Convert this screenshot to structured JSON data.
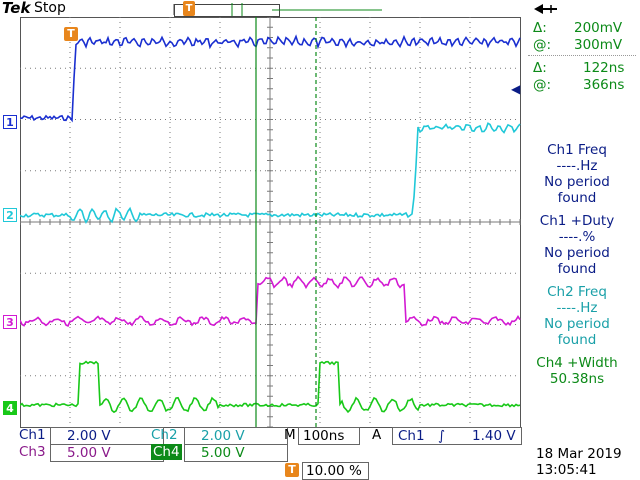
{
  "header": {
    "brand": "Tek",
    "status": "Stop",
    "trigger_marker_glyph": "T"
  },
  "cursor_readout": {
    "v_delta": "Δ:",
    "v_delta_value": "200mV",
    "v_at": "@:",
    "v_at_value": "300mV",
    "t_delta": "Δ:",
    "t_delta_value": "122ns",
    "t_at": "@:",
    "t_at_value": "366ns"
  },
  "measurements": [
    {
      "line1": "Ch1 Freq",
      "line2": "----.Hz",
      "line3": "No period",
      "line4": "found",
      "color": "#0a1c86"
    },
    {
      "line1": "Ch1 +Duty",
      "line2": "----.%",
      "line3": "No period",
      "line4": "found",
      "color": "#0a1c86"
    },
    {
      "line1": "Ch2 Freq",
      "line2": "----.Hz",
      "line3": "No period",
      "line4": "found",
      "color": "#1aa0a8"
    },
    {
      "line1": "Ch4 +Width",
      "line2": "50.38ns",
      "color": "#0c8a18"
    }
  ],
  "channel_markers": [
    {
      "label": "1",
      "color": "#1a2fd0"
    },
    {
      "label": "2",
      "color": "#20c8d8"
    },
    {
      "label": "3",
      "color": "#d21ad2"
    },
    {
      "label": "4",
      "color": "#18c818"
    }
  ],
  "bottom_bar": {
    "ch1_label": "Ch1",
    "ch1_scale": "2.00 V",
    "ch2_label": "Ch2",
    "ch2_scale": "2.00 V",
    "ch3_label": "Ch3",
    "ch3_scale": "5.00 V",
    "ch4_label": "Ch4",
    "ch4_scale": "5.00 V",
    "horiz_prefix": "M",
    "horiz_scale": "100ns",
    "trig_mode": "A",
    "trig_source": "Ch1",
    "trig_slope": "∫",
    "trig_level": "1.40 V",
    "trig_position": "10.00 %",
    "date": "18 Mar 2019",
    "time": "13:05:41"
  },
  "colors": {
    "ch1": "#1a2fd0",
    "ch2": "#20c8d8",
    "ch3": "#d21ad2",
    "ch4": "#18c818",
    "trigger": "#e8861c",
    "grid": "#7a7a7a"
  }
}
